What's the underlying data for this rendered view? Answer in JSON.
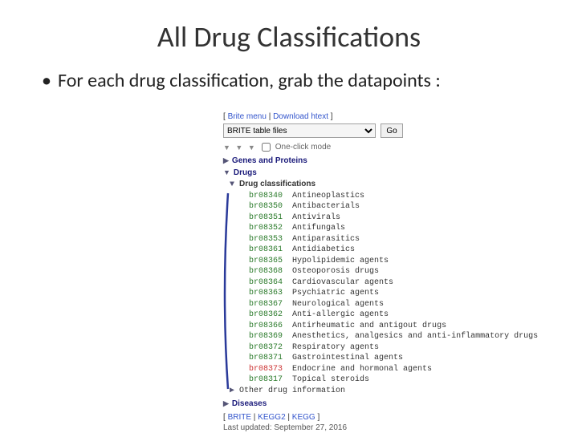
{
  "title": "All Drug Classifications",
  "bullet_text": "For each drug classification, grab the datapoints :",
  "panel": {
    "top_links": {
      "l1": "Brite menu",
      "l2": "Download htext"
    },
    "select_label": "BRITE table files",
    "go_label": "Go",
    "oneclick_label": "One-click mode",
    "triangles": "▼ ▼ ▼",
    "sections": {
      "genes": "Genes and Proteins",
      "drugs": "Drugs",
      "drug_class": "Drug classifications",
      "other_info": "Other drug information",
      "diseases": "Diseases"
    },
    "items": [
      {
        "code": "br08340",
        "label": "Antineoplastics"
      },
      {
        "code": "br08350",
        "label": "Antibacterials"
      },
      {
        "code": "br08351",
        "label": "Antivirals"
      },
      {
        "code": "br08352",
        "label": "Antifungals"
      },
      {
        "code": "br08353",
        "label": "Antiparasitics"
      },
      {
        "code": "br08361",
        "label": "Antidiabetics"
      },
      {
        "code": "br08365",
        "label": "Hypolipidemic agents"
      },
      {
        "code": "br08368",
        "label": "Osteoporosis drugs"
      },
      {
        "code": "br08364",
        "label": "Cardiovascular agents"
      },
      {
        "code": "br08363",
        "label": "Psychiatric agents"
      },
      {
        "code": "br08367",
        "label": "Neurological agents"
      },
      {
        "code": "br08362",
        "label": "Anti-allergic agents"
      },
      {
        "code": "br08366",
        "label": "Antirheumatic and antigout drugs"
      },
      {
        "code": "br08369",
        "label": "Anesthetics, analgesics and anti-inflammatory drugs"
      },
      {
        "code": "br08372",
        "label": "Respiratory agents"
      },
      {
        "code": "br08371",
        "label": "Gastrointestinal agents"
      },
      {
        "code": "br08373",
        "label": "Endocrine and hormonal agents",
        "hl": true
      },
      {
        "code": "br08317",
        "label": "Topical steroids"
      }
    ],
    "footer_links": {
      "a": "BRITE",
      "b": "KEGG2",
      "c": "KEGG"
    },
    "updated": "Last updated: September 27, 2016"
  },
  "colors": {
    "link": "#3355cc",
    "code": "#2a7a2a",
    "code_hl": "#cc3333",
    "section": "#1a1a7a",
    "annotation_stroke": "#2a3a9a"
  }
}
